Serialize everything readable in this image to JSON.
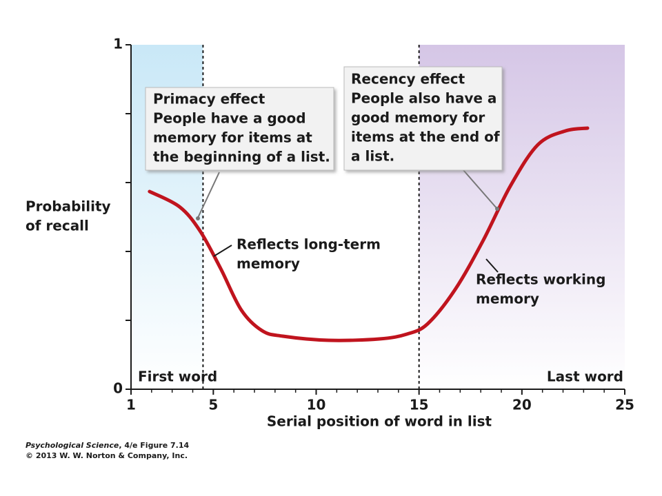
{
  "chart_data": {
    "type": "line",
    "x_label": "Serial position of word in list",
    "y_label": [
      "Probability",
      "of recall"
    ],
    "xlim": [
      1,
      25
    ],
    "ylim": [
      0,
      1
    ],
    "xticks": [
      1,
      5,
      10,
      15,
      20,
      25
    ],
    "yticks": [
      0,
      1
    ],
    "yminor": [
      0.2,
      0.4,
      0.6,
      0.8
    ],
    "dividers": [
      4.5,
      15
    ],
    "shade_colors": [
      "#c9e8f7",
      "#d5c6e6"
    ],
    "color": "#c0141e",
    "x": [
      1.9,
      3.35,
      4.35,
      5.36,
      6.36,
      7.37,
      8.38,
      10.62,
      13.07,
      14.41,
      15.42,
      16.76,
      18.1,
      19.44,
      20.78,
      22.12,
      23.19
    ],
    "values": [
      0.574,
      0.53,
      0.46,
      0.35,
      0.23,
      0.17,
      0.154,
      0.142,
      0.146,
      0.16,
      0.19,
      0.29,
      0.43,
      0.59,
      0.71,
      0.75,
      0.758
    ],
    "start_label": "First word",
    "end_label": "Last word",
    "boxes": [
      {
        "title": "Primacy effect",
        "lines": [
          "People have a good",
          "memory for items at",
          "the beginning of a list."
        ]
      },
      {
        "title": "Recency effect",
        "lines": [
          "People also have a",
          "good memory for",
          "items at the end of",
          "a list."
        ]
      }
    ],
    "notes": [
      [
        "Reflects long-term",
        "memory"
      ],
      [
        "Reflects working",
        "memory"
      ]
    ],
    "source": {
      "book": "Psychological Science",
      "figure": ", 4/e  Figure 7.14",
      "copyright": "© 2013 W. W. Norton & Company, Inc."
    }
  }
}
